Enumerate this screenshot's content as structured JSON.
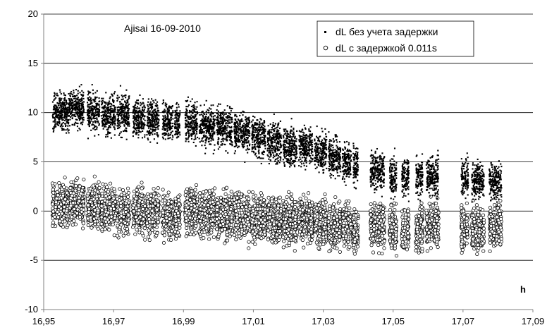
{
  "chart_data": {
    "type": "scatter",
    "title": "Ajisai 16-09-2010",
    "xlabel": "h",
    "ylabel": "",
    "xlim": [
      16.95,
      17.09
    ],
    "ylim": [
      -10,
      20
    ],
    "x_ticks": [
      "16,95",
      "16,97",
      "16,99",
      "17,01",
      "17,03",
      "17,05",
      "17,07",
      "17,09"
    ],
    "y_ticks": [
      "-10",
      "-5",
      "0",
      "5",
      "10",
      "15",
      "20"
    ],
    "grid": "horizontal",
    "legend_position": "top-right",
    "colors": {
      "series_fill": "#000000",
      "series2_fill": "#ffffff",
      "series2_stroke": "#000000",
      "grid": "#000000",
      "frame": "#808080"
    },
    "passes": [
      {
        "x_start": 16.9525,
        "x_end": 16.9575,
        "upper_y": 10.0,
        "lower_y": 0.5
      },
      {
        "x_start": 16.9575,
        "x_end": 16.9615,
        "upper_y": 10.5,
        "lower_y": 1.0
      },
      {
        "x_start": 16.9625,
        "x_end": 16.966,
        "upper_y": 10.2,
        "lower_y": 0.5
      },
      {
        "x_start": 16.9665,
        "x_end": 16.9705,
        "upper_y": 9.8,
        "lower_y": 0.2
      },
      {
        "x_start": 16.971,
        "x_end": 16.9745,
        "upper_y": 10.0,
        "lower_y": 0.0
      },
      {
        "x_start": 16.9755,
        "x_end": 16.979,
        "upper_y": 9.5,
        "lower_y": 0.0
      },
      {
        "x_start": 16.9795,
        "x_end": 16.983,
        "upper_y": 9.3,
        "lower_y": -0.2
      },
      {
        "x_start": 16.984,
        "x_end": 16.987,
        "upper_y": 9.0,
        "lower_y": -0.5
      },
      {
        "x_start": 16.9875,
        "x_end": 16.989,
        "upper_y": 9.0,
        "lower_y": -0.5
      },
      {
        "x_start": 16.9905,
        "x_end": 16.994,
        "upper_y": 9.0,
        "lower_y": 0.0
      },
      {
        "x_start": 16.9945,
        "x_end": 16.999,
        "upper_y": 8.5,
        "lower_y": -0.3
      },
      {
        "x_start": 16.9995,
        "x_end": 17.004,
        "upper_y": 8.5,
        "lower_y": -0.5
      },
      {
        "x_start": 17.0045,
        "x_end": 17.009,
        "upper_y": 8.0,
        "lower_y": -0.5
      },
      {
        "x_start": 17.0095,
        "x_end": 17.0135,
        "upper_y": 7.5,
        "lower_y": -0.8
      },
      {
        "x_start": 17.014,
        "x_end": 17.018,
        "upper_y": 7.0,
        "lower_y": -1.0
      },
      {
        "x_start": 17.0185,
        "x_end": 17.0225,
        "upper_y": 6.5,
        "lower_y": -1.0
      },
      {
        "x_start": 17.023,
        "x_end": 17.027,
        "upper_y": 6.5,
        "lower_y": -1.0
      },
      {
        "x_start": 17.0275,
        "x_end": 17.031,
        "upper_y": 6.0,
        "lower_y": -1.2
      },
      {
        "x_start": 17.0315,
        "x_end": 17.035,
        "upper_y": 5.5,
        "lower_y": -1.5
      },
      {
        "x_start": 17.0355,
        "x_end": 17.038,
        "upper_y": 5.0,
        "lower_y": -1.5
      },
      {
        "x_start": 17.0385,
        "x_end": 17.04,
        "upper_y": 4.5,
        "lower_y": -2.0
      },
      {
        "x_start": 17.0435,
        "x_end": 17.0475,
        "upper_y": 4.0,
        "lower_y": -1.5
      },
      {
        "x_start": 17.049,
        "x_end": 17.051,
        "upper_y": 3.5,
        "lower_y": -2.0
      },
      {
        "x_start": 17.0525,
        "x_end": 17.0545,
        "upper_y": 3.5,
        "lower_y": -2.0
      },
      {
        "x_start": 17.0565,
        "x_end": 17.0585,
        "upper_y": 3.5,
        "lower_y": -2.0
      },
      {
        "x_start": 17.0595,
        "x_end": 17.063,
        "upper_y": 3.5,
        "lower_y": -1.5
      },
      {
        "x_start": 17.0695,
        "x_end": 17.0715,
        "upper_y": 3.5,
        "lower_y": -1.5
      },
      {
        "x_start": 17.0725,
        "x_end": 17.076,
        "upper_y": 3.0,
        "lower_y": -2.0
      },
      {
        "x_start": 17.0775,
        "x_end": 17.081,
        "upper_y": 3.0,
        "lower_y": -1.5
      }
    ],
    "series": [
      {
        "name": "dL без учета задержки",
        "marker": "dot"
      },
      {
        "name": "dL с задержкой 0.011s",
        "marker": "circle"
      }
    ]
  }
}
